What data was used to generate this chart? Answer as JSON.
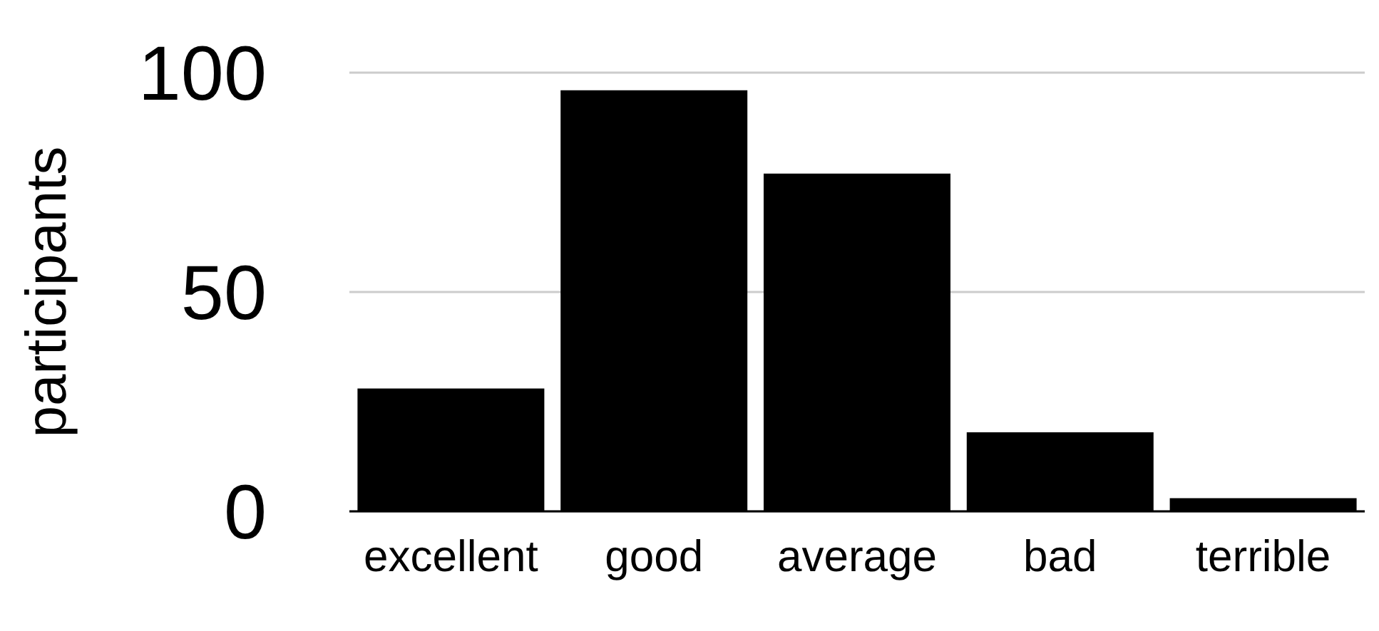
{
  "chart_data": {
    "type": "bar",
    "ylabel": "participants",
    "categories": [
      "excellent",
      "good",
      "average",
      "bad",
      "terrible"
    ],
    "values": [
      28,
      96,
      77,
      18,
      3
    ],
    "color": "#000000",
    "ylim": [
      0,
      100
    ],
    "yticks": [
      0,
      50,
      100
    ],
    "grid": "y"
  }
}
